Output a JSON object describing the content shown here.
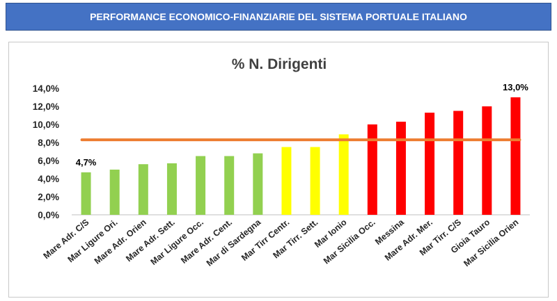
{
  "header": {
    "title": "PERFORMANCE ECONOMICO-FINANZIARIE DEL SISTEMA PORTUALE ITALIANO"
  },
  "colors": {
    "banner": "#4472c4",
    "green": "#92d050",
    "yellow": "#ffff00",
    "red": "#ff0000",
    "reference_line": "#ed7d31"
  },
  "chart_data": {
    "type": "bar",
    "title": "% N. Dirigenti",
    "xlabel": "",
    "ylabel": "",
    "ylim": [
      0,
      14
    ],
    "y_ticks": [
      "0,0%",
      "2,0%",
      "4,0%",
      "6,0%",
      "8,0%",
      "10,0%",
      "12,0%",
      "14,0%"
    ],
    "grid": false,
    "categories": [
      "Mare Adr. C/S",
      "Mar Ligure Ori.",
      "Mare Adr. Orien",
      "Mare Adr. Sett.",
      "Mar Ligure Occ.",
      "Mare Adr. Cent.",
      "Mar di Sardegna",
      "Mar Tirr Centr.",
      "Mar Tirr. Sett.",
      "Mar Ionio",
      "Mar Sicilia Occ.",
      "Messina",
      "Mare Adr. Mer.",
      "Mar Tirr. C/S",
      "Gioia Tauro",
      "Mar Sicilia Orien"
    ],
    "values": [
      4.7,
      5.0,
      5.6,
      5.7,
      6.5,
      6.5,
      6.8,
      7.5,
      7.5,
      8.9,
      10.0,
      10.3,
      11.3,
      11.5,
      12.0,
      13.0
    ],
    "bar_colors": [
      "green",
      "green",
      "green",
      "green",
      "green",
      "green",
      "green",
      "yellow",
      "yellow",
      "yellow",
      "red",
      "red",
      "red",
      "red",
      "red",
      "red"
    ],
    "reference_line": 8.3,
    "data_labels": [
      {
        "index": 0,
        "text": "4,7%"
      },
      {
        "index": 15,
        "text": "13,0%"
      }
    ]
  }
}
